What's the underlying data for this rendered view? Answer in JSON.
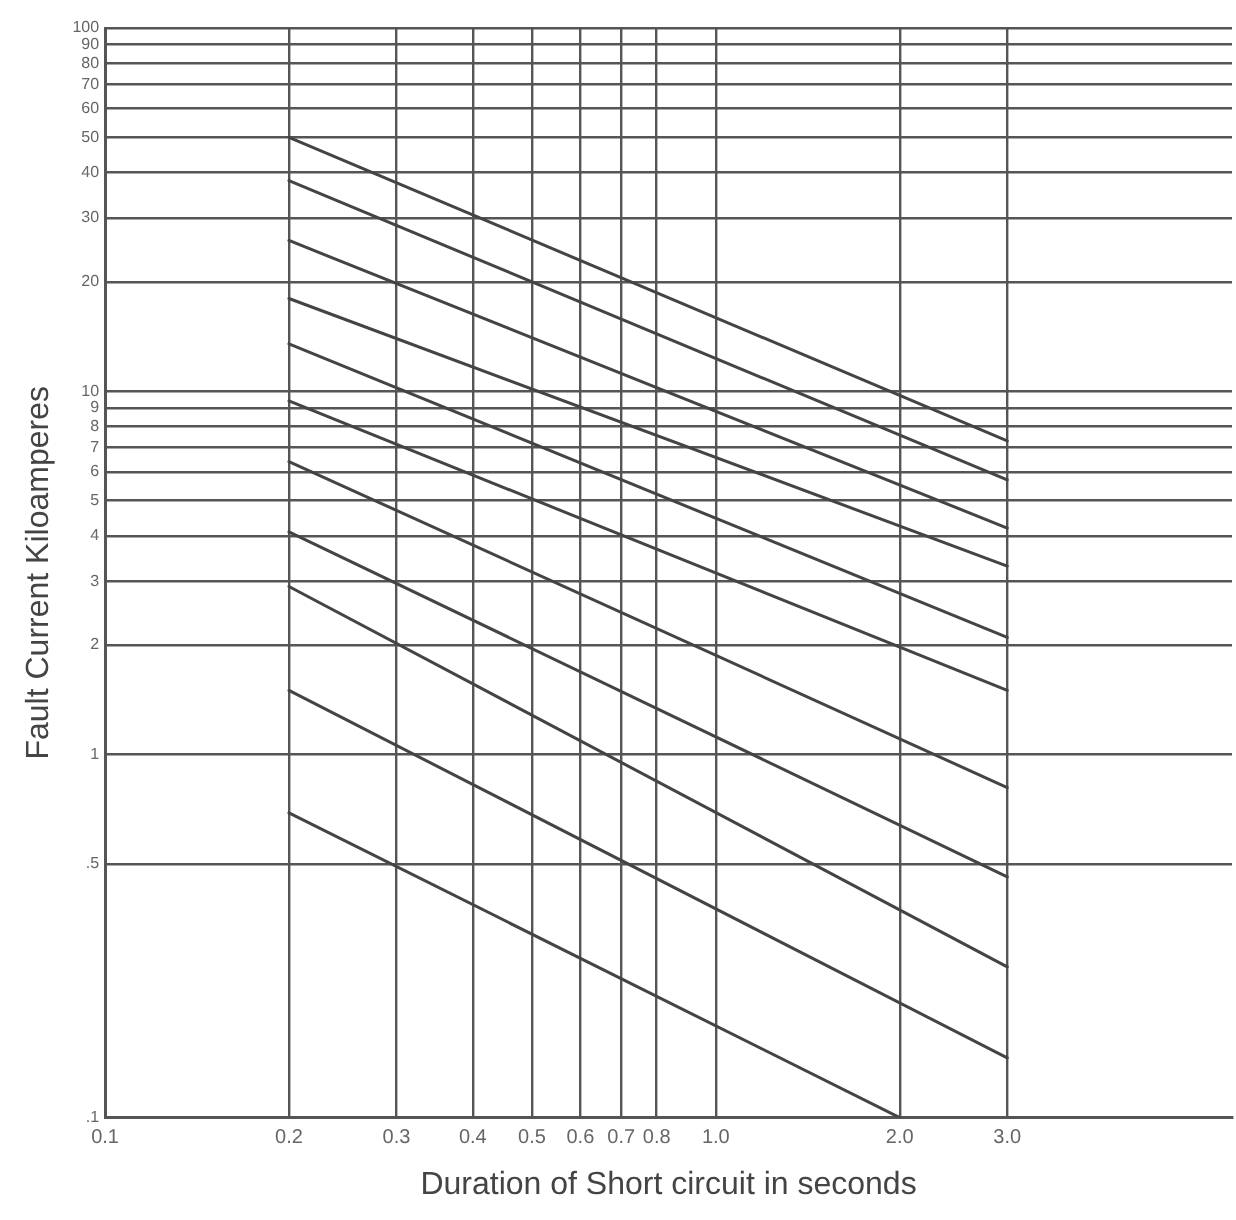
{
  "chart_data": {
    "type": "line",
    "xlabel": "Duration of Short circuit in seconds",
    "ylabel": "Fault Current Kiloamperes",
    "log": "xy",
    "grid": true,
    "marker": "none",
    "line_style": "solid",
    "xlim": [
      0.1,
      7
    ],
    "ylim": [
      0.1,
      100
    ],
    "xticks": [
      0.1,
      0.2,
      0.3,
      0.4,
      0.5,
      0.6,
      0.7,
      0.8,
      {
        "value": 1,
        "label": "1.0"
      },
      {
        "value": 2,
        "label": "2.0"
      },
      {
        "value": 3,
        "label": "3.0"
      }
    ],
    "yticks": [
      {
        "value": 0.1,
        "label": ".1"
      },
      {
        "value": 0.5,
        "label": ".5"
      },
      1,
      2,
      3,
      4,
      5,
      6,
      7,
      8,
      9,
      10,
      20,
      30,
      40,
      50,
      60,
      70,
      80,
      90,
      100
    ],
    "series": [
      {
        "color": "#444444",
        "x": [
          0.2,
          3
        ],
        "values": [
          50,
          7.3
        ]
      },
      {
        "color": "#444444",
        "x": [
          0.2,
          3
        ],
        "values": [
          38,
          5.7
        ]
      },
      {
        "color": "#444444",
        "x": [
          0.2,
          3
        ],
        "values": [
          26,
          4.2
        ]
      },
      {
        "color": "#444444",
        "x": [
          0.2,
          3
        ],
        "values": [
          18,
          3.3
        ]
      },
      {
        "color": "#444444",
        "x": [
          0.2,
          3
        ],
        "values": [
          13.5,
          2.1
        ]
      },
      {
        "color": "#444444",
        "x": [
          0.2,
          3
        ],
        "values": [
          9.4,
          1.5
        ]
      },
      {
        "color": "#444444",
        "x": [
          0.2,
          3
        ],
        "values": [
          6.4,
          0.81
        ]
      },
      {
        "color": "#444444",
        "x": [
          0.2,
          3
        ],
        "values": [
          4.1,
          0.46
        ]
      },
      {
        "color": "#444444",
        "x": [
          0.2,
          3
        ],
        "values": [
          2.9,
          0.26
        ]
      },
      {
        "color": "#444444",
        "x": [
          0.2,
          3
        ],
        "values": [
          1.5,
          0.146
        ]
      },
      {
        "color": "#444444",
        "x": [
          0.2,
          2
        ],
        "values": [
          0.69,
          0.1
        ]
      }
    ]
  }
}
